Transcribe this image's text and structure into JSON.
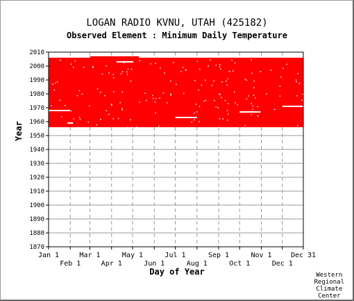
{
  "chart_data": {
    "type": "scatter",
    "title": "LOGAN RADIO KVNU, UTAH   (425182)",
    "subtitle": "Observed Element : Minimum Daily Temperature",
    "xlabel": "Day of Year",
    "ylabel": "Year",
    "xlim": [
      1,
      365
    ],
    "ylim": [
      1870,
      2010
    ],
    "x_ticks_top_row": [
      "Jan 1",
      "Mar 1",
      "May 1",
      "Jul 1",
      "Sep 1",
      "Nov 1",
      "Dec 31"
    ],
    "x_ticks_bottom_row": [
      "Feb 1",
      "Apr 1",
      "Jun 1",
      "Aug 1",
      "Oct 1",
      "Dec 1"
    ],
    "y_ticks": [
      "1870",
      "1880",
      "1890",
      "1900",
      "1910",
      "1920",
      "1930",
      "1940",
      "1950",
      "1960",
      "1970",
      "1980",
      "1990",
      "2000",
      "2010"
    ],
    "grid": true,
    "series_color": "#ff0000",
    "data_coverage": {
      "description": "observed days (year vs day of year)",
      "main_block": {
        "x_start": 1,
        "x_end": 365,
        "year_start": 1956,
        "year_end": 2005
      },
      "extension_early_spring": {
        "x_start": 60,
        "x_end": 130,
        "year_start": 2005,
        "year_end": 2006
      },
      "missing_gaps": [
        {
          "x_start": 1,
          "x_end": 32,
          "year": 1968
        },
        {
          "x_start": 28,
          "x_end": 36,
          "year": 1959
        },
        {
          "x_start": 98,
          "x_end": 122,
          "year": 2003
        },
        {
          "x_start": 182,
          "x_end": 213,
          "year": 1963
        },
        {
          "x_start": 274,
          "x_end": 304,
          "year": 1967
        },
        {
          "x_start": 335,
          "x_end": 365,
          "year": 1971
        }
      ]
    }
  },
  "credit_lines": [
    "Western",
    "Regional",
    "Climate",
    "Center"
  ]
}
